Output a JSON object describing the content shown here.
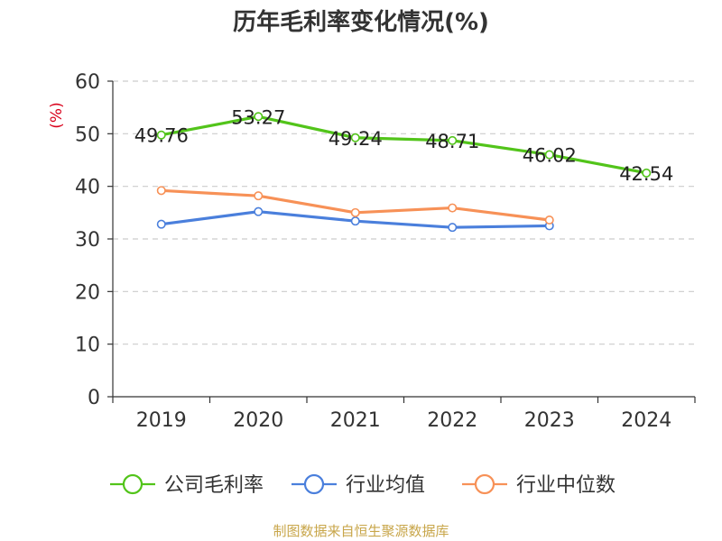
{
  "chart_data": {
    "type": "line",
    "title": "历年毛利率变化情况(%)",
    "ylabel": "(%)",
    "xlabel": "",
    "categories": [
      "2019",
      "2020",
      "2021",
      "2022",
      "2023",
      "2024"
    ],
    "ylim": [
      0,
      60
    ],
    "yticks": [
      0,
      10,
      20,
      30,
      40,
      50,
      60
    ],
    "grid": true,
    "legend_position": "bottom",
    "series": [
      {
        "name": "公司毛利率",
        "color": "#52c41a",
        "labeled": true,
        "values": [
          49.76,
          53.27,
          49.24,
          48.71,
          46.02,
          42.54
        ],
        "labels": [
          "49.76",
          "53.27",
          "49.24",
          "48.71",
          "46.02",
          "42.54"
        ]
      },
      {
        "name": "行业均值",
        "color": "#4a7fdc",
        "labeled": false,
        "values": [
          32.8,
          35.2,
          33.4,
          32.2,
          32.5,
          null
        ]
      },
      {
        "name": "行业中位数",
        "color": "#f79157",
        "labeled": false,
        "values": [
          39.2,
          38.2,
          35.0,
          35.9,
          33.6,
          null
        ]
      }
    ]
  },
  "source": {
    "text": "制图数据来自恒生聚源数据库",
    "color": "#c8a64a"
  },
  "colors": {
    "axis": "#333333",
    "grid": "#cccccc",
    "ylabel": "#d9001b"
  }
}
